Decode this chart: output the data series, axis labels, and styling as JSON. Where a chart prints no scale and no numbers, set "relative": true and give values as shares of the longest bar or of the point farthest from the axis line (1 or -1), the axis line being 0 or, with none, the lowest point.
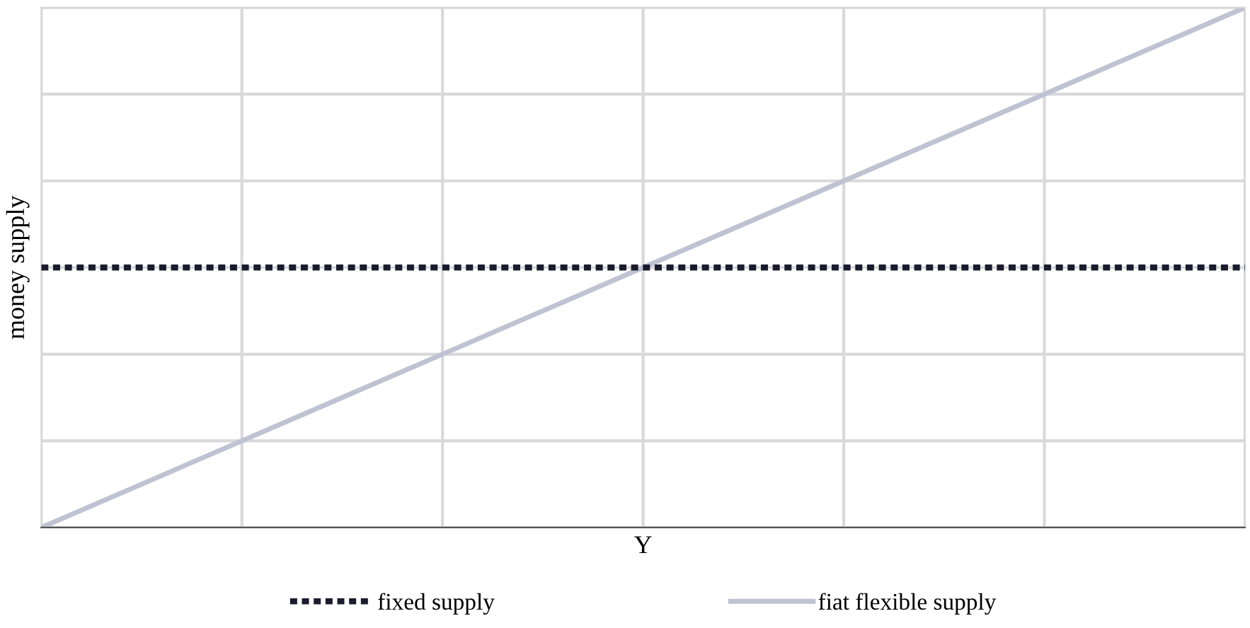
{
  "chart_data": {
    "type": "line",
    "xlabel": "Y",
    "ylabel": "money supply",
    "relative": true,
    "categories": [
      null,
      null,
      null,
      null,
      null,
      null,
      null
    ],
    "series": [
      {
        "name": "fixed supply",
        "color": "#1c1b2e",
        "values": [
          0.5,
          0.5,
          0.5,
          0.5,
          0.5,
          0.5,
          0.5
        ],
        "line_style": "dotted"
      },
      {
        "name": "fiat flexible supply",
        "color": "#bfc3d1",
        "values": [
          0,
          0.1667,
          0.3333,
          0.5,
          0.6667,
          0.8333,
          1
        ],
        "line_style": "solid"
      }
    ],
    "grid": true,
    "legend": "bottom",
    "marker": "none",
    "tick_labels": false
  }
}
